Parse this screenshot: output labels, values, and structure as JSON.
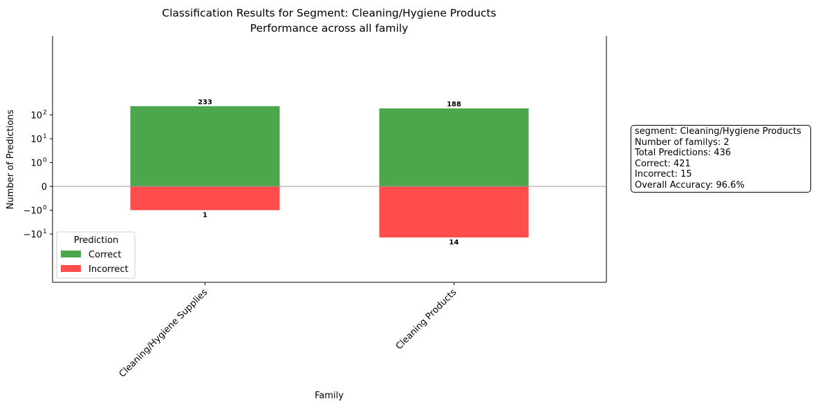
{
  "chart_data": {
    "type": "bar",
    "title": "Classification Results for Segment: Cleaning/Hygiene Products",
    "subtitle": "Performance across all family",
    "xlabel": "Family",
    "ylabel": "Number of Predictions",
    "y_scale": "symlog",
    "categories": [
      "Cleaning/Hygiene Supplies",
      "Cleaning Products"
    ],
    "series": [
      {
        "name": "Correct",
        "values": [
          233,
          188
        ],
        "color": "#4ca64c",
        "labels": [
          "233",
          "188"
        ]
      },
      {
        "name": "Incorrect",
        "values": [
          -1,
          -14
        ],
        "color": "#ff4c4c",
        "labels": [
          "1",
          "14"
        ]
      }
    ],
    "y_ticks": [
      {
        "value": 100,
        "label": "10",
        "sup": "2"
      },
      {
        "value": 10,
        "label": "10",
        "sup": "1"
      },
      {
        "value": 1,
        "label": "10",
        "sup": "0"
      },
      {
        "value": 0,
        "label": "0",
        "sup": ""
      },
      {
        "value": -1,
        "label": "−10",
        "sup": "0"
      },
      {
        "value": -10,
        "label": "−10",
        "sup": "1"
      }
    ],
    "legend": {
      "title": "Prediction",
      "position": "lower-left"
    },
    "grid": false
  },
  "info_box": {
    "lines": [
      "segment: Cleaning/Hygiene Products",
      "Number of familys: 2",
      "Total Predictions: 436",
      "Correct: 421",
      "Incorrect: 15",
      "Overall Accuracy: 96.6%"
    ]
  }
}
